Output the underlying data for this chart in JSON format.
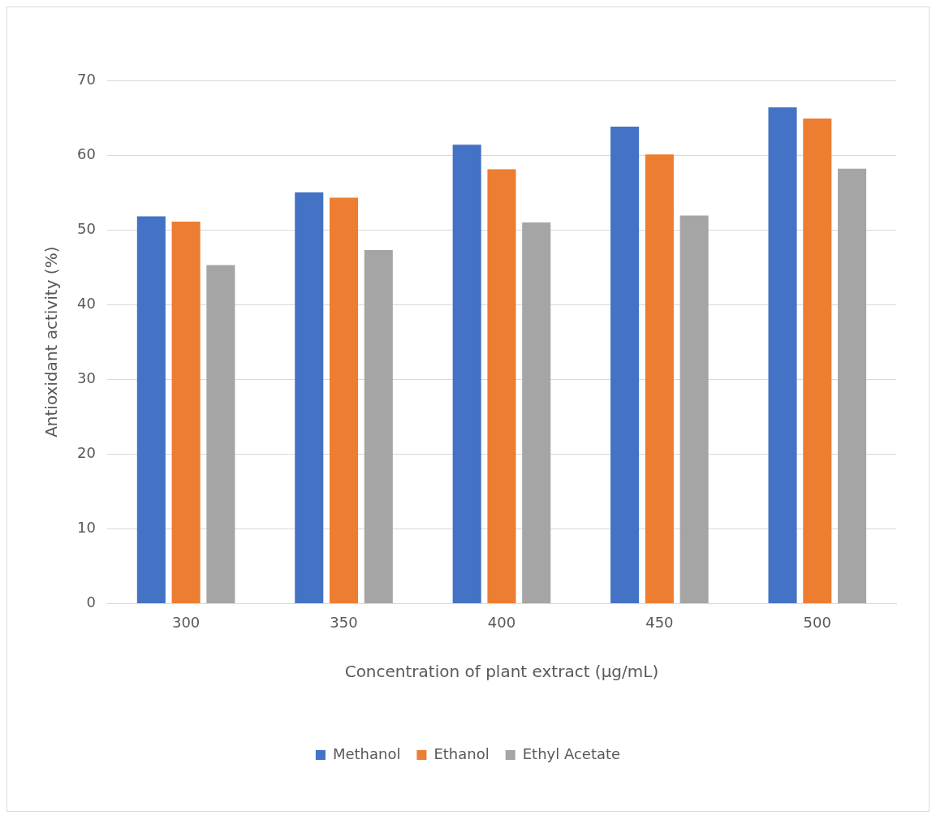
{
  "chart_data": {
    "type": "bar",
    "xlabel": "Concentration of plant extract (µg/mL)",
    "ylabel": "Antioxidant activity (%)",
    "categories": [
      "300",
      "350",
      "400",
      "450",
      "500"
    ],
    "series": [
      {
        "name": "Methanol",
        "color": "#4472c4",
        "values": [
          51.8,
          55.0,
          61.4,
          63.8,
          66.4
        ]
      },
      {
        "name": "Ethanol",
        "color": "#ed7d31",
        "values": [
          51.1,
          54.3,
          58.1,
          60.1,
          64.9
        ]
      },
      {
        "name": "Ethyl Acetate",
        "color": "#a5a5a5",
        "values": [
          45.3,
          47.3,
          51.0,
          51.9,
          58.2
        ]
      }
    ],
    "ylim": [
      0,
      70
    ],
    "yticks": [
      0,
      10,
      20,
      30,
      40,
      50,
      60,
      70
    ],
    "grid": "y",
    "legend": "bottom"
  }
}
